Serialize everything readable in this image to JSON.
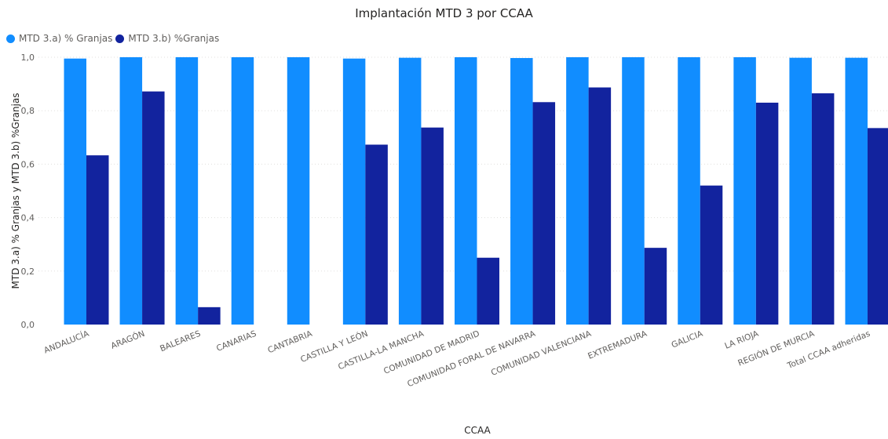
{
  "chart_data": {
    "type": "bar",
    "title": "Implantación MTD 3 por CCAA",
    "xlabel": "CCAA",
    "ylabel": "MTD 3.a) % Granjas y MTD 3.b) %Granjas",
    "ylim": [
      0,
      1.0
    ],
    "yticks": [
      "0,0",
      "0,2",
      "0,4",
      "0,6",
      "0,8",
      "1,0"
    ],
    "grid": true,
    "legend_position": "top-left",
    "categories": [
      "ANDALUCÍA",
      "ARAGÓN",
      "BALEARES",
      "CANARIAS",
      "CANTABRIA",
      "CASTILLA Y LEÓN",
      "CASTILLA-LA MANCHA",
      "COMUNIDAD DE MADRID",
      "COMUNIDAD FORAL DE NAVARRA",
      "COMUNIDAD VALENCIANA",
      "EXTREMADURA",
      "GALICIA",
      "LA RIOJA",
      "REGIÓN DE MURCIA",
      "Total CCAA adheridas"
    ],
    "series": [
      {
        "name": "MTD 3.a) % Granjas",
        "color": "#118dff",
        "values": [
          0.995,
          1.0,
          1.0,
          1.0,
          1.0,
          0.995,
          0.998,
          1.0,
          0.997,
          1.0,
          1.0,
          1.0,
          1.0,
          0.998,
          0.998
        ]
      },
      {
        "name": "MTD 3.b) %Granjas",
        "color": "#12239e",
        "values": [
          0.633,
          0.872,
          0.065,
          0.0,
          0.0,
          0.673,
          0.737,
          0.25,
          0.832,
          0.887,
          0.287,
          0.52,
          0.83,
          0.865,
          0.735
        ]
      }
    ]
  }
}
